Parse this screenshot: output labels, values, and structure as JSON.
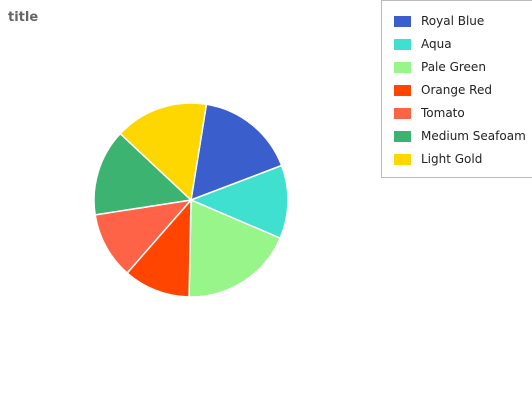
{
  "chart_data": {
    "type": "pie",
    "title": "title",
    "slices": [
      {
        "name": "Royal Blue",
        "value": 15,
        "color": "#3a5fcd"
      },
      {
        "name": "Aqua",
        "value": 11,
        "color": "#40e0d0"
      },
      {
        "name": "Pale Green",
        "value": 17,
        "color": "#98f58a"
      },
      {
        "name": "Orange Red",
        "value": 10,
        "color": "#ff4500"
      },
      {
        "name": "Tomato",
        "value": 10,
        "color": "#ff6347"
      },
      {
        "name": "Medium Seafoam",
        "value": 13,
        "color": "#3cb371"
      },
      {
        "name": "Light Gold",
        "value": 14,
        "color": "#ffd700"
      }
    ],
    "legend_position": "top-right"
  }
}
